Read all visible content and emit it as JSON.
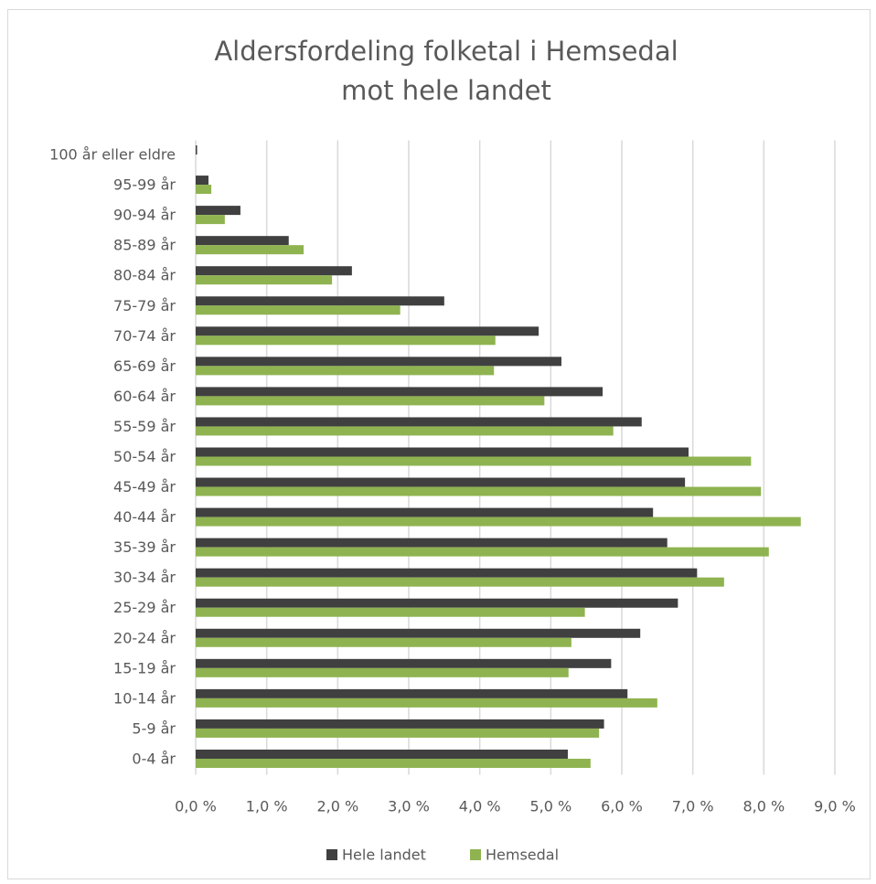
{
  "chart_data": {
    "type": "bar",
    "orientation": "horizontal",
    "title": [
      "Aldersfordeling folketal i Hemsedal",
      "mot hele landet"
    ],
    "categories": [
      "0-4 år",
      "5-9 år",
      "10-14 år",
      "15-19 år",
      "20-24 år",
      "25-29 år",
      "30-34 år",
      "35-39 år",
      "40-44 år",
      "45-49 år",
      "50-54 år",
      "55-59 år",
      "60-64 år",
      "65-69 år",
      "70-74 år",
      "75-79 år",
      "80-84 år",
      "85-89 år",
      "90-94 år",
      "95-99 år",
      "100 år eller eldre"
    ],
    "series": [
      {
        "name": "Hele landet",
        "color": "#404040",
        "values": [
          5.24,
          5.75,
          6.08,
          5.85,
          6.26,
          6.79,
          7.06,
          6.64,
          6.44,
          6.89,
          6.94,
          6.28,
          5.73,
          5.15,
          4.83,
          3.5,
          2.2,
          1.31,
          0.63,
          0.18,
          0.02
        ]
      },
      {
        "name": "Hemsedal",
        "color": "#8fb350",
        "values": [
          5.56,
          5.68,
          6.5,
          5.25,
          5.29,
          5.48,
          7.44,
          8.07,
          8.52,
          7.96,
          7.82,
          5.88,
          4.91,
          4.2,
          4.22,
          2.88,
          1.92,
          1.52,
          0.41,
          0.22,
          0
        ]
      }
    ],
    "xlim": [
      0,
      9
    ],
    "xticks": [
      {
        "value": 0,
        "label": "0,0 %"
      },
      {
        "value": 1,
        "label": "1,0 %"
      },
      {
        "value": 2,
        "label": "2,0 %"
      },
      {
        "value": 3,
        "label": "3,0 %"
      },
      {
        "value": 4,
        "label": "4,0 %"
      },
      {
        "value": 5,
        "label": "5,0 %"
      },
      {
        "value": 6,
        "label": "6,0 %"
      },
      {
        "value": 7,
        "label": "7,0 %"
      },
      {
        "value": 8,
        "label": "8,0 %"
      },
      {
        "value": 9,
        "label": "9,0 %"
      }
    ],
    "grid": true,
    "legend": "bottom"
  }
}
